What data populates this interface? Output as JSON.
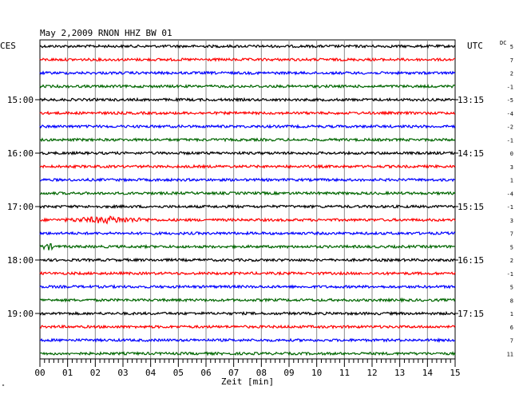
{
  "chart_data": {
    "type": "line",
    "title": "May 2,2009   RNON HHZ BW 01",
    "left_corner_label": "CES",
    "right_corner_label": "UTC",
    "dc_label": "DC",
    "xlabel": "Zeit [min]",
    "xlim": [
      0,
      15
    ],
    "x_ticks": [
      "00",
      "01",
      "02",
      "03",
      "04",
      "05",
      "06",
      "07",
      "08",
      "09",
      "10",
      "11",
      "12",
      "13",
      "14",
      "15"
    ],
    "trace_colors": [
      "#000000",
      "#ff0000",
      "#0000ff",
      "#006600"
    ],
    "left_time_labels": [
      {
        "row": 4,
        "label": "15:00"
      },
      {
        "row": 8,
        "label": "16:00"
      },
      {
        "row": 12,
        "label": "17:00"
      },
      {
        "row": 16,
        "label": "18:00"
      },
      {
        "row": 20,
        "label": "19:00"
      }
    ],
    "right_time_labels": [
      {
        "row": 4,
        "label": "13:15"
      },
      {
        "row": 8,
        "label": "14:15"
      },
      {
        "row": 12,
        "label": "15:15"
      },
      {
        "row": 16,
        "label": "16:15"
      },
      {
        "row": 20,
        "label": "17:15"
      }
    ],
    "dc_offsets": [
      "5",
      "7",
      "2",
      "-1",
      "-5",
      "-4",
      "-2",
      "-1",
      "0",
      "3",
      "1",
      "-4",
      "-1",
      "3",
      "7",
      "5",
      "2",
      "-1",
      "5",
      "8",
      "1",
      "6",
      "7",
      "11"
    ],
    "events": [
      {
        "row": 13,
        "x_min": [
          0.7,
          4.2
        ],
        "amplitude": "medium"
      },
      {
        "row": 15,
        "x_min": [
          0.0,
          0.6
        ],
        "amplitude": "medium"
      }
    ],
    "grid": true,
    "footnote": "\""
  }
}
